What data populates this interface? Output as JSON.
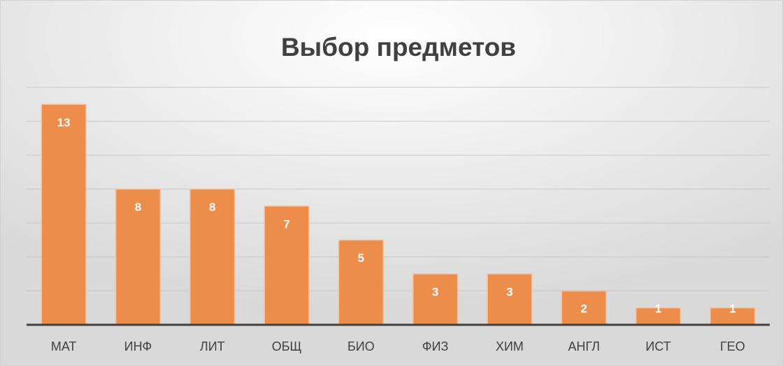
{
  "chart_data": {
    "type": "bar",
    "title": "Выбор предметов",
    "categories": [
      "МАТ",
      "ИНФ",
      "ЛИТ",
      "ОБЩ",
      "БИО",
      "ФИЗ",
      "ХИМ",
      "АНГЛ",
      "ИСТ",
      "ГЕО"
    ],
    "values": [
      13,
      8,
      8,
      7,
      5,
      3,
      3,
      2,
      1,
      1
    ],
    "color": "#ed8d4c",
    "ylim": [
      0,
      14
    ],
    "yticks": [
      0,
      2,
      4,
      6,
      8,
      10,
      12,
      14
    ],
    "grid": true
  }
}
